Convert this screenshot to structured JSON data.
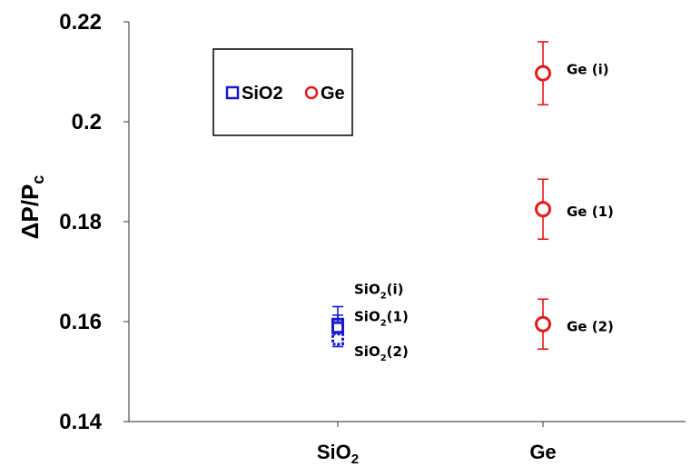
{
  "chart_data": {
    "type": "scatter",
    "ylabel_main": "ΔP/P",
    "ylabel_sub": "c",
    "ylim": [
      0.14,
      0.22
    ],
    "yticks": [
      "0.14",
      "0.16",
      "0.18",
      "0.2",
      "0.22"
    ],
    "categories": [
      {
        "main": "SiO",
        "sub": "2"
      },
      {
        "main": "Ge",
        "sub": ""
      }
    ],
    "grid": false,
    "legend_position": "top-left",
    "series": [
      {
        "name": "SiO2",
        "color": "#1a1acc",
        "marker": "square",
        "points": [
          {
            "category": 0,
            "y": 0.1595,
            "err": 0.0035,
            "style": "solid"
          },
          {
            "category": 0,
            "y": 0.1588,
            "err": 0.0025,
            "style": "solid"
          },
          {
            "category": 0,
            "y": 0.1565,
            "err": 0.0015,
            "style": "dashed"
          }
        ]
      },
      {
        "name": "Ge",
        "color": "#e41a1a",
        "marker": "circle",
        "points": [
          {
            "category": 1,
            "y": 0.2097,
            "err": 0.0063,
            "style": "solid"
          },
          {
            "category": 1,
            "y": 0.1825,
            "err": 0.006,
            "style": "solid"
          },
          {
            "category": 1,
            "y": 0.1595,
            "err": 0.005,
            "style": "solid"
          }
        ]
      }
    ],
    "annotations": [
      {
        "main": "SiO",
        "sub": "2",
        "tail": "(i)",
        "category": 0,
        "y": 0.1665
      },
      {
        "main": "SiO",
        "sub": "2",
        "tail": "(1)",
        "category": 0,
        "y": 0.161
      },
      {
        "main": "SiO",
        "sub": "2",
        "tail": "(2)",
        "category": 0,
        "y": 0.154
      },
      {
        "main": "Ge (i)",
        "sub": "",
        "tail": "",
        "category": 1,
        "y": 0.2105
      },
      {
        "main": "Ge (1)",
        "sub": "",
        "tail": "",
        "category": 1,
        "y": 0.182
      },
      {
        "main": "Ge (2)",
        "sub": "",
        "tail": "",
        "category": 1,
        "y": 0.159
      }
    ]
  }
}
